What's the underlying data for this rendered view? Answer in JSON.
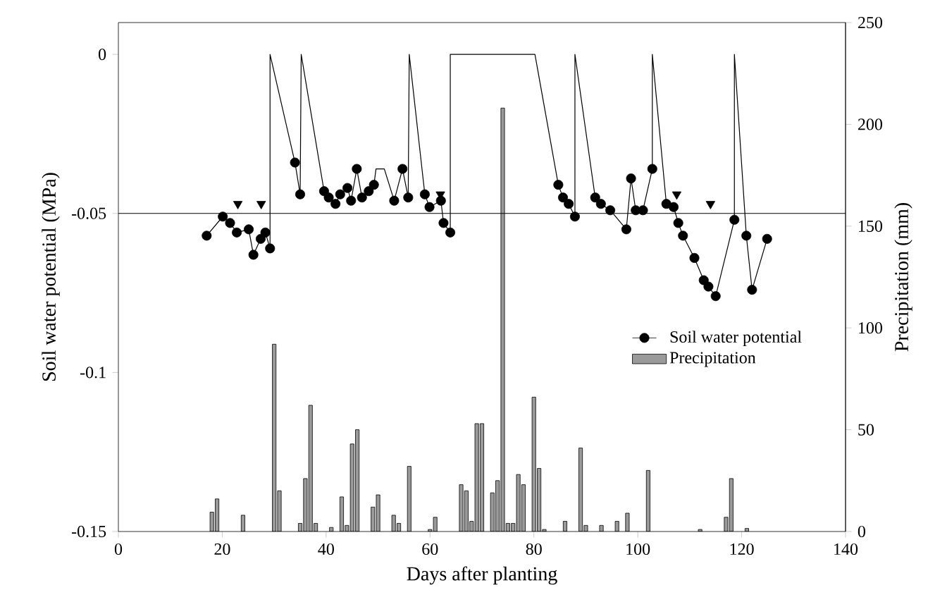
{
  "chart_data": {
    "type": "line",
    "xlabel": "Days after planting",
    "ylabel": "Soil water potential (MPa)",
    "y2label": "Precipitation (mm)",
    "xlim": [
      0,
      140
    ],
    "xticks": [
      0,
      20,
      40,
      60,
      80,
      100,
      120,
      140
    ],
    "ylim": [
      -0.15,
      0.01
    ],
    "yticks": [
      -0.15,
      -0.1,
      -0.05,
      0
    ],
    "y2lim": [
      0,
      250
    ],
    "y2ticks": [
      0,
      50,
      100,
      150,
      200,
      250
    ],
    "legend": "center right",
    "ref_lines": [
      {
        "axis": "y",
        "value": -0.05,
        "color": "#000000"
      }
    ],
    "series": [
      {
        "color": "#000000",
        "marker": "none",
        "x": [
          17,
          20.1,
          21.5,
          22.8,
          25.1,
          26,
          27.4,
          28.3,
          29.2,
          29.2,
          34,
          35,
          35.2,
          39.6,
          40.5,
          41.8,
          42.7,
          44.1,
          44.8,
          45.9,
          46.9,
          48.2,
          49.2,
          49.6,
          51.2,
          53.1,
          54.7,
          55.8,
          56,
          59,
          59.9,
          62.1,
          62.6,
          63.9,
          63.9,
          80.2,
          84.7,
          85.6,
          86.7,
          87.9,
          87.9,
          91.8,
          92.9,
          94.7,
          97.8,
          98.7,
          99.6,
          101,
          102.8,
          102.8,
          105.5,
          106.9,
          107.8,
          108.7,
          110.9,
          112.7,
          113.6,
          115,
          118.6,
          118.6,
          120.9,
          122,
          124.9
        ],
        "values": [
          -0.057,
          -0.051,
          -0.053,
          -0.056,
          -0.055,
          -0.063,
          -0.058,
          -0.056,
          -0.061,
          0,
          -0.034,
          -0.044,
          0,
          -0.043,
          -0.045,
          -0.047,
          -0.044,
          -0.042,
          -0.046,
          -0.036,
          -0.045,
          -0.043,
          -0.041,
          -0.036,
          -0.036,
          -0.046,
          -0.036,
          -0.045,
          0,
          -0.044,
          -0.048,
          -0.046,
          -0.053,
          -0.056,
          0,
          0,
          -0.041,
          -0.045,
          -0.047,
          -0.051,
          0,
          -0.045,
          -0.047,
          -0.049,
          -0.055,
          -0.039,
          -0.049,
          -0.049,
          -0.036,
          0,
          -0.047,
          -0.048,
          -0.053,
          -0.057,
          -0.064,
          -0.071,
          -0.073,
          -0.076,
          -0.052,
          0,
          -0.057,
          -0.074,
          -0.058
        ]
      },
      {
        "type": "scatter",
        "name": "Soil water potential",
        "color": "#000000",
        "marker": "circle",
        "x": [
          17,
          20.1,
          21.5,
          22.8,
          25.1,
          26,
          27.4,
          28.3,
          29.2,
          34,
          35,
          39.6,
          40.5,
          41.8,
          42.7,
          44.1,
          44.8,
          45.9,
          46.9,
          48.2,
          49.2,
          53.1,
          54.7,
          55.8,
          59,
          59.9,
          62.1,
          62.6,
          63.9,
          84.7,
          85.6,
          86.7,
          87.9,
          91.8,
          92.9,
          94.7,
          97.8,
          98.7,
          99.6,
          101,
          102.8,
          105.5,
          106.9,
          107.8,
          108.7,
          110.9,
          112.7,
          113.6,
          115,
          118.6,
          120.9,
          122,
          124.9
        ],
        "values": [
          -0.057,
          -0.051,
          -0.053,
          -0.056,
          -0.055,
          -0.063,
          -0.058,
          -0.056,
          -0.061,
          -0.034,
          -0.044,
          -0.043,
          -0.045,
          -0.047,
          -0.044,
          -0.042,
          -0.046,
          -0.036,
          -0.045,
          -0.043,
          -0.041,
          -0.046,
          -0.036,
          -0.045,
          -0.044,
          -0.048,
          -0.046,
          -0.053,
          -0.056,
          -0.041,
          -0.045,
          -0.047,
          -0.051,
          -0.045,
          -0.047,
          -0.049,
          -0.055,
          -0.039,
          -0.049,
          -0.049,
          -0.036,
          -0.047,
          -0.048,
          -0.053,
          -0.057,
          -0.064,
          -0.071,
          -0.073,
          -0.076,
          -0.052,
          -0.057,
          -0.074,
          -0.058
        ]
      },
      {
        "type": "scatter",
        "color": "#000000",
        "marker": "triangle",
        "x": [
          23,
          27.5,
          62,
          107.5,
          114
        ],
        "values": [
          -0.047,
          -0.047,
          -0.044,
          -0.044,
          -0.047
        ]
      },
      {
        "type": "bar",
        "name": "Precipitation",
        "axis": "y2",
        "color": "#9a9a9a",
        "x": [
          18,
          19,
          24,
          30,
          31,
          35,
          36,
          37,
          38,
          41,
          43,
          44,
          45,
          46,
          49,
          50,
          53,
          54,
          56,
          60,
          61,
          66,
          67,
          68,
          69,
          70,
          72,
          73,
          74,
          75,
          76,
          77,
          78,
          80,
          81,
          82,
          86,
          89,
          90,
          93,
          96,
          98,
          102,
          112,
          117,
          118,
          121
        ],
        "values": [
          9.5,
          16,
          8,
          92,
          20,
          4,
          26,
          62,
          4,
          2,
          17,
          3,
          43,
          50,
          12,
          18,
          8,
          4,
          32,
          1,
          7,
          23,
          20,
          5,
          53,
          53,
          19,
          25,
          208,
          4,
          4,
          28,
          23,
          66,
          31,
          1,
          5,
          41,
          3,
          3,
          5,
          9,
          30,
          1,
          7,
          26,
          1.5
        ]
      }
    ]
  }
}
